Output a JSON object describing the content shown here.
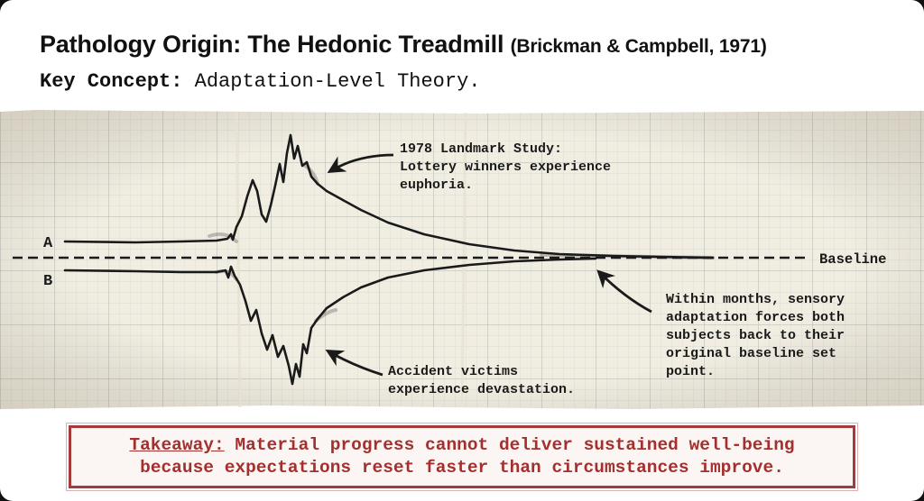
{
  "header": {
    "title": "Pathology Origin: The Hedonic Treadmill",
    "citation": "(Brickman & Campbell, 1971)",
    "subtitle_key": "Key Concept:",
    "subtitle_value": "Adaptation-Level Theory."
  },
  "diagram": {
    "trace_a_label": "A",
    "trace_b_label": "B",
    "baseline_label": "Baseline",
    "annotations": {
      "lottery": [
        "1978 Landmark Study:",
        "Lottery winners experience",
        "euphoria."
      ],
      "accident": [
        "Accident victims",
        "experience devastation."
      ],
      "adaptation": [
        "Within months, sensory",
        "adaptation forces both",
        "subjects back to their",
        "original baseline set",
        "point."
      ]
    }
  },
  "takeaway": {
    "label": "Takeaway:",
    "line1": "Material progress cannot deliver sustained well-being",
    "line2": "because expectations reset faster than circumstances improve."
  },
  "colors": {
    "paper": "#f2ede1",
    "grid_minor": "#cfd4cf",
    "grid_major": "#a9b2ac",
    "ink": "#1a1a1a",
    "takeaway_red": "#a3302f"
  }
}
